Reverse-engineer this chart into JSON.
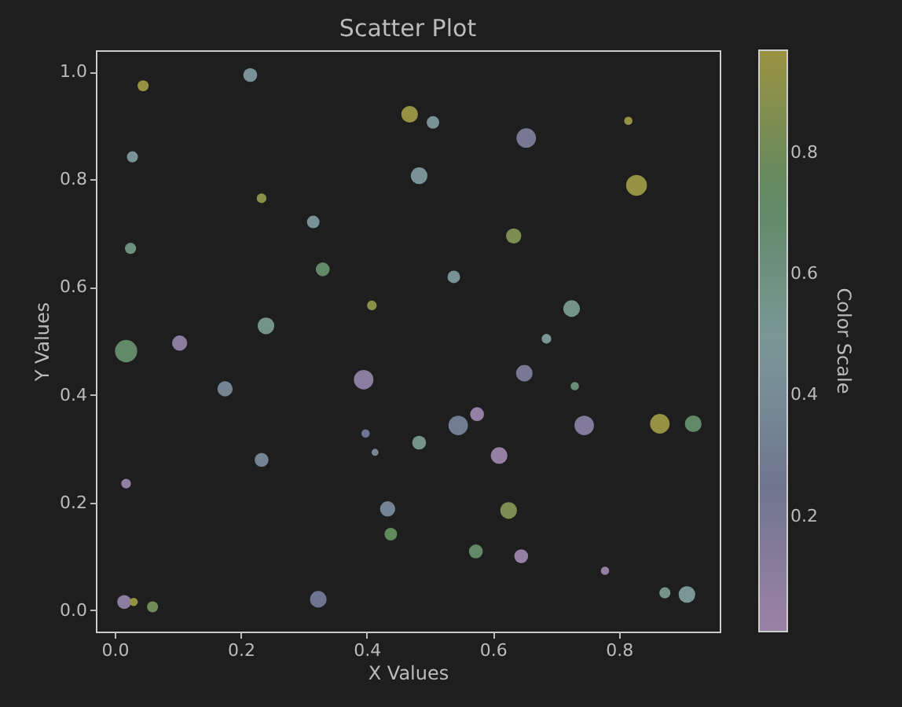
{
  "chart_data": {
    "type": "bubble",
    "title": "Scatter Plot",
    "xlabel": "X Values",
    "ylabel": "Y Values",
    "clabel": "Color Scale",
    "x": [
      0.045,
      0.215,
      0.028,
      0.233,
      0.025,
      0.315,
      0.33,
      0.408,
      0.24,
      0.018,
      0.103,
      0.175,
      0.395,
      0.398,
      0.413,
      0.233,
      0.018,
      0.015,
      0.03,
      0.06,
      0.323,
      0.468,
      0.505,
      0.653,
      0.815,
      0.483,
      0.828,
      0.633,
      0.538,
      0.725,
      0.685,
      0.65,
      0.73,
      0.575,
      0.545,
      0.745,
      0.865,
      0.918,
      0.483,
      0.61,
      0.625,
      0.573,
      0.645,
      0.778,
      0.873,
      0.908,
      0.433,
      0.438
    ],
    "values": [
      0.974,
      0.994,
      0.842,
      0.765,
      0.672,
      0.721,
      0.633,
      0.566,
      0.528,
      0.481,
      0.496,
      0.411,
      0.428,
      0.328,
      0.293,
      0.279,
      0.235,
      0.015,
      0.015,
      0.006,
      0.02,
      0.921,
      0.906,
      0.877,
      0.909,
      0.807,
      0.789,
      0.695,
      0.619,
      0.56,
      0.504,
      0.44,
      0.416,
      0.364,
      0.343,
      0.343,
      0.346,
      0.346,
      0.311,
      0.287,
      0.185,
      0.109,
      0.1,
      0.073,
      0.032,
      0.029,
      0.188,
      0.141
    ],
    "sizes": [
      0.25,
      0.39,
      0.25,
      0.19,
      0.25,
      0.32,
      0.39,
      0.19,
      0.56,
      1,
      0.47,
      0.47,
      0.77,
      0.14,
      0.1,
      0.39,
      0.19,
      0.39,
      0.14,
      0.25,
      0.56,
      0.56,
      0.32,
      0.77,
      0.14,
      0.56,
      0.88,
      0.47,
      0.32,
      0.56,
      0.19,
      0.56,
      0.14,
      0.39,
      0.77,
      0.77,
      0.77,
      0.56,
      0.39,
      0.56,
      0.56,
      0.39,
      0.39,
      0.14,
      0.25,
      0.56,
      0.47,
      0.32
    ],
    "cvalues": [
      0.95,
      0.45,
      0.45,
      0.9,
      0.6,
      0.45,
      0.7,
      0.9,
      0.55,
      0.7,
      0.1,
      0.35,
      0.1,
      0.25,
      0.35,
      0.35,
      0.05,
      0.1,
      0.95,
      0.8,
      0.25,
      0.95,
      0.45,
      0.2,
      0.95,
      0.45,
      0.95,
      0.85,
      0.45,
      0.55,
      0.5,
      0.2,
      0.65,
      0.05,
      0.3,
      0.15,
      0.95,
      0.7,
      0.55,
      0.05,
      0.85,
      0.7,
      0.05,
      0.05,
      0.55,
      0.5,
      0.35,
      0.75
    ],
    "xlim": [
      -0.03,
      0.96
    ],
    "ylim": [
      -0.04,
      1.04
    ],
    "xticks": [
      {
        "value": 0,
        "label": "0.0"
      },
      0.2,
      0.4,
      0.6,
      0.8
    ],
    "yticks": [
      {
        "value": 0,
        "label": "0.0"
      },
      0.2,
      0.4,
      0.6,
      0.8,
      {
        "value": 1,
        "label": "1.0"
      }
    ],
    "clim": [
      0.01,
      0.97
    ],
    "cticks": [
      0.2,
      0.4,
      0.6,
      0.8
    ],
    "marker": "circle",
    "grid": false
  }
}
